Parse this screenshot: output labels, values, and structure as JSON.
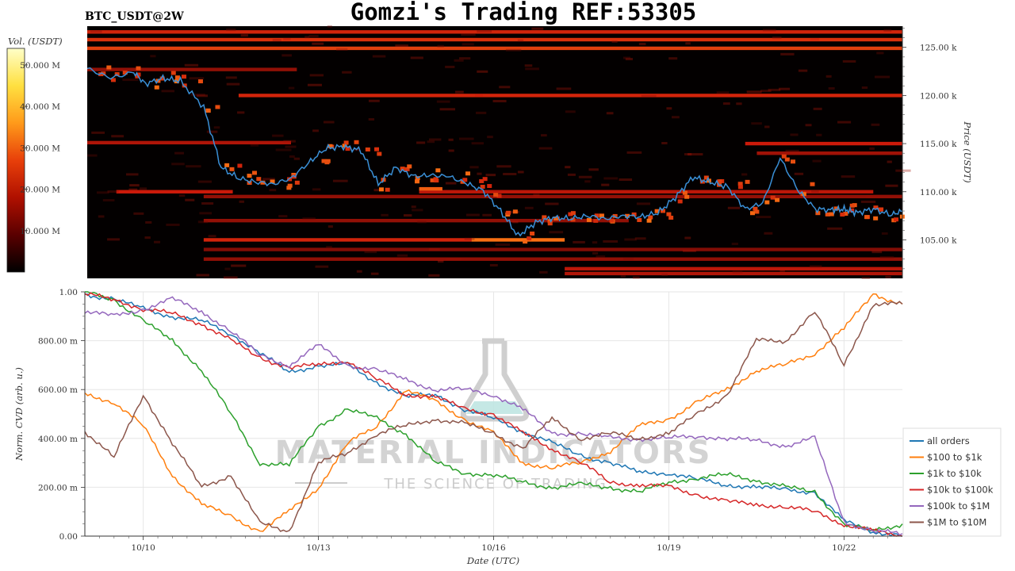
{
  "header": {
    "symbol": "BTC_USDT@2W",
    "title": "Gomzi's Trading REF:53305"
  },
  "watermark": {
    "brand": "MATERIAL INDICATORS",
    "tagline": "THE SCIENCE OF TRADING"
  },
  "colors": {
    "price_line": "#3a8fd6",
    "heatmap_background": "#030000",
    "heat_low": "#3a0000",
    "heat_mid": "#cc1a0a",
    "heat_high": "#ff7a14"
  },
  "chart_data": [
    {
      "type": "heatmap",
      "name": "order-book-heatmap",
      "colorbar": {
        "label": "Vol. (USDT)",
        "ticks": [
          "10.000 M",
          "20.000 M",
          "30.000 M",
          "40.000 M",
          "50.000 M"
        ],
        "tick_values": [
          10,
          20,
          30,
          40,
          50
        ],
        "range": [
          0,
          54
        ],
        "colors": [
          "#000000",
          "#5a0000",
          "#b01000",
          "#e8400a",
          "#ff9a1a",
          "#ffe040",
          "#ffffc8"
        ]
      },
      "y_axis": {
        "label": "Price (USDT)",
        "ticks": [
          "105.00 k",
          "110.00 k",
          "115.00 k",
          "120.00 k",
          "125.00 k"
        ],
        "tick_values": [
          105000,
          110000,
          115000,
          120000,
          125000
        ],
        "range": [
          101000,
          127200
        ]
      },
      "x_range": [
        0,
        14
      ],
      "levels": [
        {
          "price": 126600,
          "start": 0,
          "end": 14,
          "intensity": 0.55
        },
        {
          "price": 125800,
          "start": 0,
          "end": 14,
          "intensity": 0.62
        },
        {
          "price": 124900,
          "start": 0,
          "end": 14,
          "intensity": 0.7
        },
        {
          "price": 122700,
          "start": 0,
          "end": 3.6,
          "intensity": 0.3
        },
        {
          "price": 120000,
          "start": 2.6,
          "end": 14,
          "intensity": 0.55
        },
        {
          "price": 115100,
          "start": 0,
          "end": 3.5,
          "intensity": 0.4
        },
        {
          "price": 115000,
          "start": 11.3,
          "end": 14,
          "intensity": 0.5
        },
        {
          "price": 114000,
          "start": 11.5,
          "end": 14,
          "intensity": 0.35
        },
        {
          "price": 110000,
          "start": 0.5,
          "end": 2.5,
          "intensity": 0.5
        },
        {
          "price": 110000,
          "start": 5.7,
          "end": 13.5,
          "intensity": 0.45
        },
        {
          "price": 110300,
          "start": 5.7,
          "end": 6.1,
          "intensity": 0.85
        },
        {
          "price": 109500,
          "start": 2.0,
          "end": 14,
          "intensity": 0.3
        },
        {
          "price": 107000,
          "start": 2.0,
          "end": 9.3,
          "intensity": 0.3
        },
        {
          "price": 105000,
          "start": 2.0,
          "end": 6.6,
          "intensity": 0.55
        },
        {
          "price": 105000,
          "start": 6.6,
          "end": 8.2,
          "intensity": 0.95
        },
        {
          "price": 104000,
          "start": 2.0,
          "end": 14,
          "intensity": 0.25
        },
        {
          "price": 103000,
          "start": 2.0,
          "end": 14,
          "intensity": 0.3
        },
        {
          "price": 102000,
          "start": 8.2,
          "end": 14,
          "intensity": 0.45
        },
        {
          "price": 101500,
          "start": 8.2,
          "end": 14,
          "intensity": 0.4
        }
      ],
      "price_series": {
        "x": [
          0,
          0.4,
          0.8,
          1.0,
          1.3,
          1.6,
          2.0,
          2.3,
          2.6,
          2.9,
          3.2,
          3.5,
          3.8,
          4.1,
          4.4,
          4.7,
          5.0,
          5.3,
          5.6,
          5.9,
          6.2,
          6.5,
          6.8,
          7.1,
          7.4,
          7.7,
          8.0,
          8.3,
          8.6,
          8.9,
          9.2,
          9.5,
          9.8,
          10.1,
          10.4,
          10.7,
          11.0,
          11.3,
          11.6,
          11.9,
          12.2,
          12.5,
          12.8,
          13.0,
          13.2,
          13.5,
          13.8,
          14.0
        ],
        "y": [
          122800,
          121800,
          122400,
          121200,
          121800,
          121500,
          118800,
          112500,
          111400,
          111000,
          110800,
          111400,
          113000,
          114500,
          114700,
          114300,
          110800,
          112500,
          111600,
          111700,
          111600,
          110900,
          110100,
          108000,
          105400,
          106800,
          107300,
          107200,
          107500,
          107200,
          107500,
          107400,
          107800,
          109400,
          111500,
          111000,
          110500,
          108200,
          108800,
          113500,
          110200,
          108200,
          108100,
          108200,
          107800,
          108200,
          107600,
          108000
        ]
      }
    },
    {
      "type": "line",
      "name": "normalized-cvd",
      "xlabel": "Date (UTC)",
      "ylabel": "Norm. CVD (arb. u.)",
      "x_ticks": [
        "10/10",
        "10/13",
        "10/16",
        "10/19",
        "10/22"
      ],
      "x_tick_values": [
        1,
        4,
        7,
        10,
        13
      ],
      "x_range": [
        0,
        14
      ],
      "y_ticks": [
        "0.00",
        "200.00 m",
        "400.00 m",
        "600.00 m",
        "800.00 m",
        "1.00"
      ],
      "y_tick_values": [
        0,
        0.2,
        0.4,
        0.6,
        0.8,
        1.0
      ],
      "ylim": [
        0,
        1.0
      ],
      "grid": true,
      "legend": "right",
      "x": [
        0,
        0.5,
        1.0,
        1.5,
        2.0,
        2.5,
        3.0,
        3.5,
        4.0,
        4.5,
        5.0,
        5.5,
        6.0,
        6.5,
        7.0,
        7.5,
        8.0,
        8.5,
        9.0,
        9.5,
        10.0,
        10.5,
        11.0,
        11.5,
        12.0,
        12.5,
        13.0,
        13.5,
        14.0
      ],
      "series": [
        {
          "name": "all orders",
          "color": "#1f77b4",
          "values": [
            0.99,
            0.97,
            0.93,
            0.9,
            0.88,
            0.83,
            0.75,
            0.67,
            0.7,
            0.7,
            0.63,
            0.57,
            0.58,
            0.52,
            0.48,
            0.43,
            0.38,
            0.33,
            0.3,
            0.26,
            0.26,
            0.23,
            0.21,
            0.2,
            0.19,
            0.18,
            0.06,
            0.02,
            0.0
          ]
        },
        {
          "name": "$100 to $1k",
          "color": "#ff7f0e",
          "values": [
            0.58,
            0.55,
            0.45,
            0.25,
            0.13,
            0.08,
            0.02,
            0.1,
            0.2,
            0.38,
            0.45,
            0.6,
            0.55,
            0.48,
            0.42,
            0.3,
            0.28,
            0.3,
            0.35,
            0.45,
            0.48,
            0.55,
            0.6,
            0.68,
            0.7,
            0.75,
            0.85,
            0.99,
            0.95
          ]
        },
        {
          "name": "$1k to $10k",
          "color": "#2ca02c",
          "values": [
            1.0,
            0.97,
            0.88,
            0.8,
            0.68,
            0.5,
            0.3,
            0.29,
            0.45,
            0.52,
            0.48,
            0.42,
            0.3,
            0.26,
            0.25,
            0.22,
            0.2,
            0.21,
            0.2,
            0.18,
            0.22,
            0.24,
            0.25,
            0.23,
            0.2,
            0.18,
            0.05,
            0.02,
            0.05
          ]
        },
        {
          "name": "$10k to $100k",
          "color": "#d62728",
          "values": [
            0.99,
            0.97,
            0.93,
            0.91,
            0.87,
            0.8,
            0.73,
            0.69,
            0.7,
            0.72,
            0.64,
            0.58,
            0.57,
            0.52,
            0.5,
            0.42,
            0.36,
            0.3,
            0.22,
            0.21,
            0.2,
            0.17,
            0.14,
            0.13,
            0.12,
            0.1,
            0.05,
            0.02,
            0.0
          ]
        },
        {
          "name": "$100k to $1M",
          "color": "#9467bd",
          "values": [
            0.92,
            0.9,
            0.93,
            0.97,
            0.92,
            0.84,
            0.74,
            0.7,
            0.78,
            0.7,
            0.68,
            0.64,
            0.6,
            0.6,
            0.58,
            0.52,
            0.42,
            0.42,
            0.4,
            0.4,
            0.4,
            0.41,
            0.4,
            0.39,
            0.37,
            0.4,
            0.06,
            0.02,
            0.01
          ]
        },
        {
          "name": "$1M to $10M",
          "color": "#8c564b",
          "values": [
            0.43,
            0.32,
            0.58,
            0.38,
            0.2,
            0.25,
            0.05,
            0.02,
            0.3,
            0.34,
            0.42,
            0.45,
            0.48,
            0.46,
            0.42,
            0.36,
            0.48,
            0.4,
            0.42,
            0.4,
            0.42,
            0.5,
            0.58,
            0.8,
            0.8,
            0.92,
            0.7,
            0.95,
            0.95
          ]
        }
      ]
    }
  ]
}
